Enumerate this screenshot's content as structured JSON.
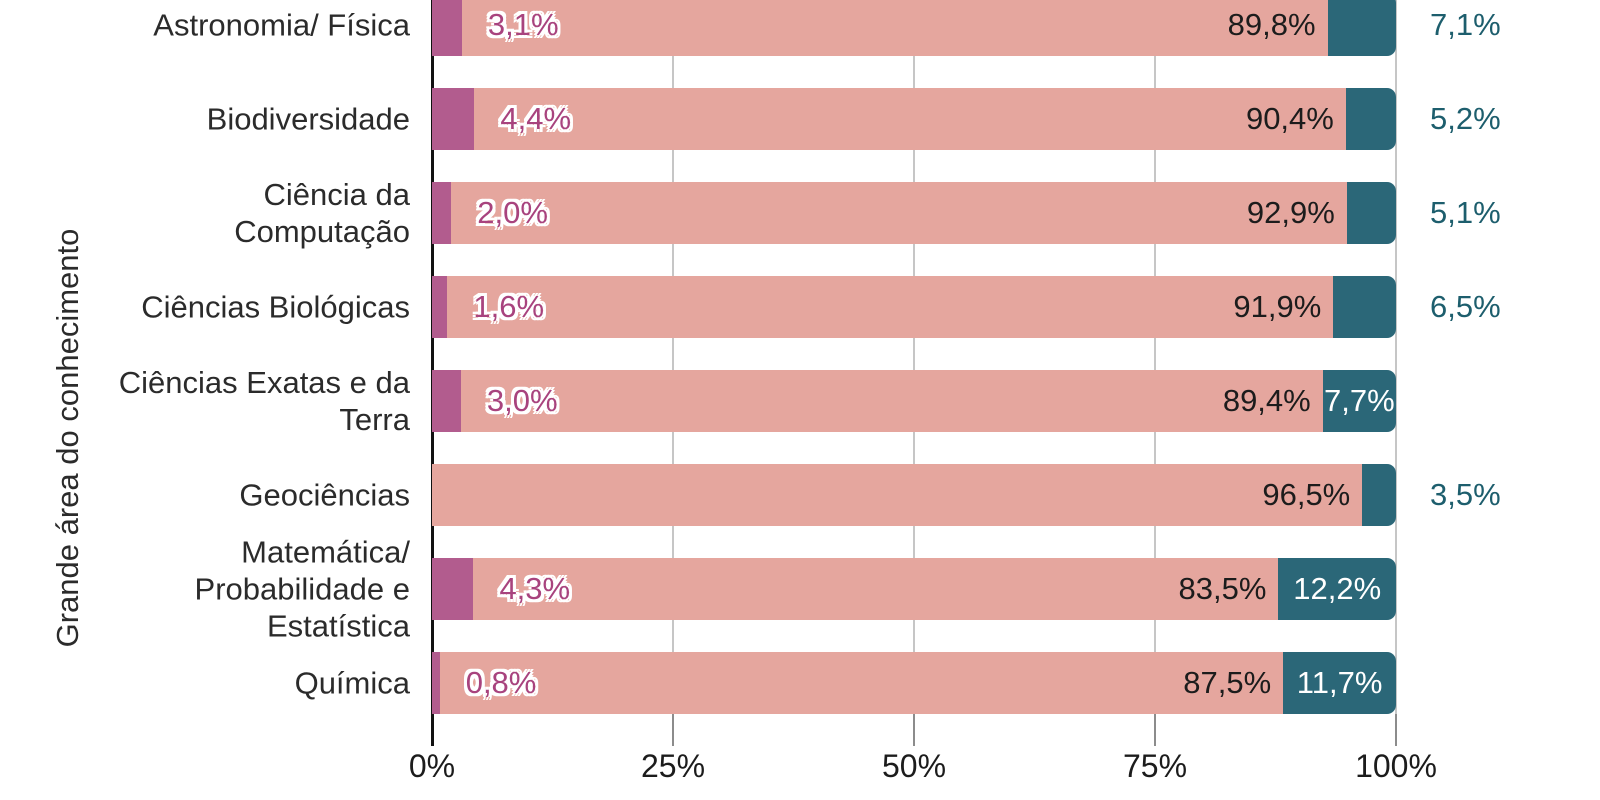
{
  "colors": {
    "segment_first": "#b25c8e",
    "segment_middle": "#e5a69e",
    "segment_last": "#2b6778",
    "label_first_text": "#a8437e",
    "label_middle_text": "#1c1c1c",
    "label_last_inside_text": "#ffffff",
    "label_last_outside_text": "#1d5e6d",
    "gridline": "#c6c6c6",
    "axis": "#111111"
  },
  "chart_data": {
    "type": "bar",
    "orientation": "horizontal",
    "stacked": true,
    "title": "",
    "xlabel": "",
    "ylabel": "Grande área do conhecimento",
    "xlim": [
      0,
      100
    ],
    "x_tick_labels": [
      "0%",
      "25%",
      "50%",
      "75%",
      "100%"
    ],
    "x_tick_values": [
      0,
      25,
      50,
      75,
      100
    ],
    "grid": true,
    "legend": false,
    "categories": [
      "Astronomia/ Física",
      "Biodiversidade",
      "Ciência da Computação",
      "Ciências Biológicas",
      "Ciências Exatas e da Terra",
      "Geociências",
      "Matemática/ Probabilidade e Estatística",
      "Química"
    ],
    "categories_display": [
      "Astronomia/ Física",
      "Biodiversidade",
      "Ciência da\nComputação",
      "Ciências Biológicas",
      "Ciências Exatas e da\nTerra",
      "Geociências",
      "Matemática/\nProbabilidade e\nEstatística",
      "Química"
    ],
    "series": [
      {
        "name": "segment-1",
        "color": "#b25c8e",
        "values": [
          3.1,
          4.4,
          2.0,
          1.6,
          3.0,
          0,
          4.3,
          0.8
        ],
        "value_labels": [
          "3,1%",
          "4,4%",
          "2,0%",
          "1,6%",
          "3,0%",
          "",
          "4,3%",
          "0,8%"
        ]
      },
      {
        "name": "segment-2",
        "color": "#e5a69e",
        "values": [
          89.8,
          90.4,
          92.9,
          91.9,
          89.4,
          96.5,
          83.5,
          87.5
        ],
        "value_labels": [
          "89,8%",
          "90,4%",
          "92,9%",
          "91,9%",
          "89,4%",
          "96,5%",
          "83,5%",
          "87,5%"
        ]
      },
      {
        "name": "segment-3",
        "color": "#2b6778",
        "values": [
          7.1,
          5.2,
          5.1,
          6.5,
          7.7,
          3.5,
          12.2,
          11.7
        ],
        "value_labels": [
          "7,1%",
          "5,2%",
          "5,1%",
          "6,5%",
          "7,7%",
          "3,5%",
          "12,2%",
          "11,7%"
        ]
      }
    ]
  }
}
